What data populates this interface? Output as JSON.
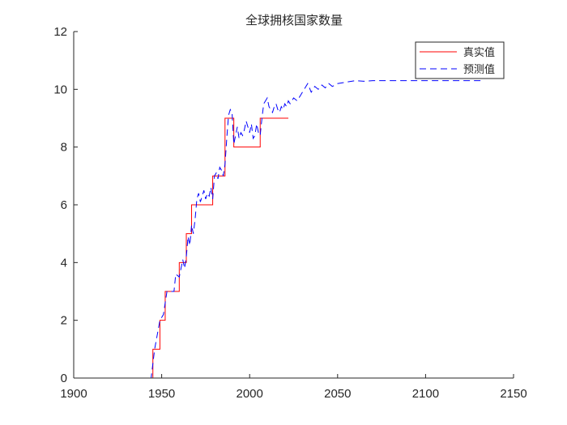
{
  "chart_data": {
    "type": "line",
    "title": "全球拥核国家数量",
    "xlabel": "",
    "ylabel": "",
    "xlim": [
      1900,
      2150
    ],
    "ylim": [
      0,
      12
    ],
    "xticks": [
      1900,
      1950,
      2000,
      2050,
      2100,
      2150
    ],
    "yticks": [
      0,
      2,
      4,
      6,
      8,
      10,
      12
    ],
    "xtick_labels": [
      "1900",
      "1950",
      "2000",
      "2050",
      "2100",
      "2150"
    ],
    "ytick_labels": [
      "0",
      "2",
      "4",
      "6",
      "8",
      "10",
      "12"
    ],
    "legend": {
      "location": "top-right",
      "entries": [
        "真实值",
        "预测值"
      ]
    },
    "colors": {
      "actual": "#ff0000",
      "predicted": "#0000ff",
      "axis": "#262626"
    },
    "series": [
      {
        "name": "真实值",
        "style": "solid",
        "x": [
          1945,
          1945,
          1949,
          1949,
          1952,
          1952,
          1960,
          1960,
          1964,
          1964,
          1967,
          1967,
          1974,
          1974,
          1979,
          1979,
          1986,
          1986,
          1991,
          1991,
          1998,
          1998,
          2006,
          2006,
          2022
        ],
        "y": [
          0,
          1,
          1,
          2,
          2,
          3,
          3,
          4,
          4,
          5,
          5,
          6,
          6,
          6,
          6,
          7,
          7,
          9,
          9,
          8,
          8,
          8,
          8,
          9,
          9
        ]
      },
      {
        "name": "预测值",
        "style": "dashed",
        "x": [
          1937,
          1944,
          1946,
          1949,
          1951,
          1953,
          1955,
          1957,
          1958,
          1960,
          1962,
          1963,
          1964,
          1965,
          1966,
          1967,
          1968,
          1969,
          1970,
          1971,
          1972,
          1973,
          1974,
          1975,
          1976,
          1977,
          1978,
          1979,
          1980,
          1981,
          1982,
          1983,
          1984,
          1985,
          1986,
          1987,
          1988,
          1989,
          1990,
          1991,
          1992,
          1993,
          1994,
          1995,
          1996,
          1997,
          1998,
          1999,
          2000,
          2001,
          2002,
          2003,
          2004,
          2005,
          2006,
          2007,
          2008,
          2009,
          2010,
          2011,
          2012,
          2013,
          2014,
          2015,
          2016,
          2017,
          2018,
          2019,
          2020,
          2021,
          2022,
          2023,
          2025,
          2027,
          2029,
          2031,
          2033,
          2035,
          2037,
          2039,
          2041,
          2043,
          2045,
          2047,
          2050,
          2055,
          2060,
          2065,
          2070,
          2075,
          2080,
          2090,
          2100,
          2110,
          2120,
          2133
        ],
        "y": [
          0,
          0,
          1,
          2,
          2.2,
          3,
          3,
          3,
          3.6,
          3.5,
          4.1,
          3.8,
          4.2,
          4.9,
          4.6,
          5.3,
          5.0,
          5.5,
          6.2,
          6.4,
          6.1,
          6.3,
          6.5,
          6.2,
          6.4,
          6.3,
          6.6,
          6.2,
          7.0,
          7.1,
          6.9,
          7.3,
          7.2,
          7.0,
          7.4,
          8.3,
          9.1,
          9.3,
          9.2,
          8.1,
          8.4,
          8.7,
          8.3,
          8.5,
          8.4,
          8.6,
          8.9,
          8.7,
          8.5,
          8.8,
          8.3,
          8.4,
          8.8,
          8.5,
          8.4,
          9.0,
          9.5,
          9.6,
          9.7,
          9.4,
          9.3,
          9.2,
          9.4,
          9.5,
          9.3,
          9.2,
          9.4,
          9.3,
          9.5,
          9.4,
          9.6,
          9.5,
          9.7,
          9.6,
          9.8,
          10.0,
          10.2,
          9.9,
          10.1,
          10.0,
          10.15,
          10.05,
          10.2,
          10.1,
          10.2,
          10.25,
          10.3,
          10.28,
          10.3,
          10.3,
          10.3,
          10.3,
          10.3,
          10.3,
          10.3,
          10.3
        ]
      }
    ]
  }
}
